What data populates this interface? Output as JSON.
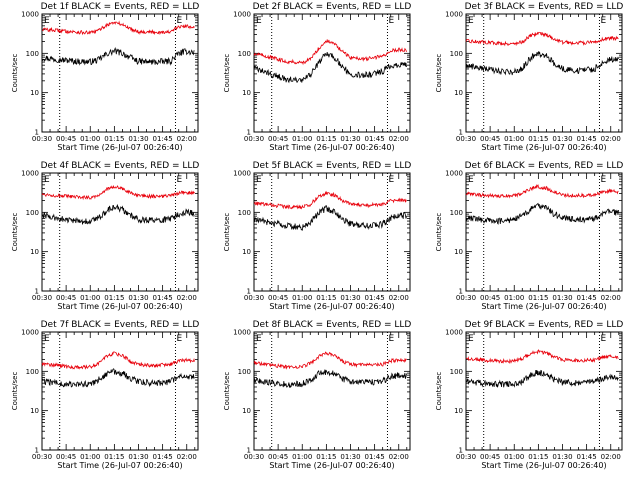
{
  "window": {
    "title": ""
  },
  "colors": {
    "events": "#000000",
    "lld": "#e8000b",
    "axes": "#000000",
    "background": "#ffffff"
  },
  "chart_data": [
    {
      "type": "line",
      "title": "Det 1f BLACK = Events, RED = LLD",
      "xlabel": "Start Time (26-Jul-07 00:26:40)",
      "ylabel": "Counts/sec",
      "yscale": "log",
      "xlim": [
        "00:30",
        "02:07"
      ],
      "ylim": [
        1,
        1000
      ],
      "x_ticks": [
        "00:30",
        "00:45",
        "01:00",
        "01:15",
        "01:30",
        "01:45",
        "02:00"
      ],
      "y_ticks": [
        "1",
        "10",
        "100",
        "1000"
      ],
      "vlines": [
        "00:41",
        "01:53"
      ],
      "markers": [
        "E",
        "E"
      ],
      "series": [
        {
          "name": "BLACK = Events",
          "color": "#000000",
          "x": [
            "00:30",
            "00:40",
            "00:50",
            "01:00",
            "01:05",
            "01:10",
            "01:15",
            "01:20",
            "01:25",
            "01:30",
            "01:40",
            "01:50",
            "01:55",
            "02:00",
            "02:05"
          ],
          "values": [
            78,
            70,
            63,
            61,
            68,
            95,
            115,
            100,
            78,
            62,
            60,
            63,
            100,
            112,
            105
          ]
        },
        {
          "name": "RED = LLD",
          "color": "#e8000b",
          "x": [
            "00:30",
            "00:40",
            "00:50",
            "01:00",
            "01:05",
            "01:10",
            "01:15",
            "01:20",
            "01:25",
            "01:30",
            "01:40",
            "01:50",
            "01:55",
            "02:00",
            "02:05"
          ],
          "values": [
            410,
            380,
            350,
            330,
            380,
            520,
            610,
            540,
            420,
            355,
            345,
            350,
            470,
            490,
            470
          ]
        }
      ]
    },
    {
      "type": "line",
      "title": "Det 2f BLACK = Events, RED = LLD",
      "xlabel": "Start Time (26-Jul-07 00:26:40)",
      "ylabel": "Counts/sec",
      "yscale": "log",
      "xlim": [
        "00:30",
        "02:07"
      ],
      "ylim": [
        1,
        1000
      ],
      "x_ticks": [
        "00:30",
        "00:45",
        "01:00",
        "01:15",
        "01:30",
        "01:45",
        "02:00"
      ],
      "y_ticks": [
        "1",
        "10",
        "100",
        "1000"
      ],
      "vlines": [
        "00:41",
        "01:53"
      ],
      "markers": [
        "E",
        "E"
      ],
      "series": [
        {
          "name": "BLACK = Events",
          "color": "#000000",
          "x": [
            "00:30",
            "00:40",
            "00:50",
            "01:00",
            "01:05",
            "01:10",
            "01:15",
            "01:20",
            "01:25",
            "01:30",
            "01:40",
            "01:50",
            "01:55",
            "02:00",
            "02:05"
          ],
          "values": [
            42,
            30,
            22,
            20,
            28,
            55,
            100,
            80,
            45,
            30,
            28,
            35,
            48,
            52,
            50
          ]
        },
        {
          "name": "RED = LLD",
          "color": "#e8000b",
          "x": [
            "00:30",
            "00:40",
            "00:50",
            "01:00",
            "01:05",
            "01:10",
            "01:15",
            "01:20",
            "01:25",
            "01:30",
            "01:40",
            "01:50",
            "01:55",
            "02:00",
            "02:05"
          ],
          "values": [
            100,
            80,
            62,
            58,
            70,
            130,
            210,
            175,
            110,
            78,
            72,
            85,
            115,
            125,
            120
          ]
        }
      ]
    },
    {
      "type": "line",
      "title": "Det 3f BLACK = Events, RED = LLD",
      "xlabel": "Start Time (26-Jul-07 00:26:40)",
      "ylabel": "Counts/sec",
      "yscale": "log",
      "xlim": [
        "00:30",
        "02:07"
      ],
      "ylim": [
        1,
        1000
      ],
      "x_ticks": [
        "00:30",
        "00:45",
        "01:00",
        "01:15",
        "01:30",
        "01:45",
        "02:00"
      ],
      "y_ticks": [
        "1",
        "10",
        "100",
        "1000"
      ],
      "vlines": [
        "00:41",
        "01:53"
      ],
      "markers": [
        "E",
        "E"
      ],
      "series": [
        {
          "name": "BLACK = Events",
          "color": "#000000",
          "x": [
            "00:30",
            "00:40",
            "00:50",
            "01:00",
            "01:05",
            "01:10",
            "01:15",
            "01:20",
            "01:25",
            "01:30",
            "01:40",
            "01:50",
            "01:55",
            "02:00",
            "02:05"
          ],
          "values": [
            50,
            42,
            35,
            33,
            42,
            75,
            100,
            85,
            55,
            40,
            36,
            40,
            60,
            72,
            68
          ]
        },
        {
          "name": "RED = LLD",
          "color": "#e8000b",
          "x": [
            "00:30",
            "00:40",
            "00:50",
            "01:00",
            "01:05",
            "01:10",
            "01:15",
            "01:20",
            "01:25",
            "01:30",
            "01:40",
            "01:50",
            "01:55",
            "02:00",
            "02:05"
          ],
          "values": [
            205,
            195,
            180,
            175,
            195,
            280,
            330,
            300,
            230,
            190,
            185,
            190,
            230,
            245,
            235
          ]
        }
      ]
    },
    {
      "type": "line",
      "title": "Det 4f BLACK = Events, RED = LLD",
      "xlabel": "Start Time (26-Jul-07 00:26:40)",
      "ylabel": "Counts/sec",
      "yscale": "log",
      "xlim": [
        "00:30",
        "02:07"
      ],
      "ylim": [
        1,
        1000
      ],
      "x_ticks": [
        "00:30",
        "00:45",
        "01:00",
        "01:15",
        "01:30",
        "01:45",
        "02:00"
      ],
      "y_ticks": [
        "1",
        "10",
        "100",
        "1000"
      ],
      "vlines": [
        "00:41",
        "01:53"
      ],
      "markers": [
        "E",
        "E"
      ],
      "series": [
        {
          "name": "BLACK = Events",
          "color": "#000000",
          "x": [
            "00:30",
            "00:40",
            "00:50",
            "01:00",
            "01:05",
            "01:10",
            "01:15",
            "01:20",
            "01:25",
            "01:30",
            "01:40",
            "01:50",
            "01:55",
            "02:00",
            "02:05"
          ],
          "values": [
            85,
            70,
            60,
            58,
            70,
            110,
            140,
            120,
            85,
            66,
            62,
            66,
            90,
            100,
            95
          ]
        },
        {
          "name": "RED = LLD",
          "color": "#e8000b",
          "x": [
            "00:30",
            "00:40",
            "00:50",
            "01:00",
            "01:05",
            "01:10",
            "01:15",
            "01:20",
            "01:25",
            "01:30",
            "01:40",
            "01:50",
            "01:55",
            "02:00",
            "02:05"
          ],
          "values": [
            290,
            265,
            245,
            240,
            270,
            380,
            450,
            400,
            310,
            260,
            255,
            260,
            310,
            320,
            300
          ]
        }
      ]
    },
    {
      "type": "line",
      "title": "Det 5f BLACK = Events, RED = LLD",
      "xlabel": "Start Time (26-Jul-07 00:26:40)",
      "ylabel": "Counts/sec",
      "yscale": "log",
      "xlim": [
        "00:30",
        "02:07"
      ],
      "ylim": [
        1,
        1000
      ],
      "x_ticks": [
        "00:30",
        "00:45",
        "01:00",
        "01:15",
        "01:30",
        "01:45",
        "02:00"
      ],
      "y_ticks": [
        "1",
        "10",
        "100",
        "1000"
      ],
      "vlines": [
        "00:41",
        "01:53"
      ],
      "markers": [
        "E",
        "E"
      ],
      "series": [
        {
          "name": "BLACK = Events",
          "color": "#000000",
          "x": [
            "00:30",
            "00:40",
            "00:50",
            "01:00",
            "01:05",
            "01:10",
            "01:15",
            "01:20",
            "01:25",
            "01:30",
            "01:40",
            "01:50",
            "01:55",
            "02:00",
            "02:05"
          ],
          "values": [
            65,
            55,
            45,
            42,
            55,
            95,
            125,
            105,
            68,
            50,
            46,
            50,
            72,
            85,
            80
          ]
        },
        {
          "name": "RED = LLD",
          "color": "#e8000b",
          "x": [
            "00:30",
            "00:40",
            "00:50",
            "01:00",
            "01:05",
            "01:10",
            "01:15",
            "01:20",
            "01:25",
            "01:30",
            "01:40",
            "01:50",
            "01:55",
            "02:00",
            "02:05"
          ],
          "values": [
            170,
            155,
            140,
            135,
            160,
            250,
            310,
            275,
            200,
            160,
            150,
            160,
            195,
            205,
            195
          ]
        }
      ]
    },
    {
      "type": "line",
      "title": "Det 6f BLACK = Events, RED = LLD",
      "xlabel": "Start Time (26-Jul-07 00:26:40)",
      "ylabel": "Counts/sec",
      "yscale": "log",
      "xlim": [
        "00:30",
        "02:07"
      ],
      "ylim": [
        1,
        1000
      ],
      "x_ticks": [
        "00:30",
        "00:45",
        "01:00",
        "01:15",
        "01:30",
        "01:45",
        "02:00"
      ],
      "y_ticks": [
        "1",
        "10",
        "100",
        "1000"
      ],
      "vlines": [
        "00:41",
        "01:53"
      ],
      "markers": [
        "E",
        "E"
      ],
      "series": [
        {
          "name": "BLACK = Events",
          "color": "#000000",
          "x": [
            "00:30",
            "00:40",
            "00:50",
            "01:00",
            "01:05",
            "01:10",
            "01:15",
            "01:20",
            "01:25",
            "01:30",
            "01:40",
            "01:50",
            "01:55",
            "02:00",
            "02:05"
          ],
          "values": [
            75,
            65,
            60,
            65,
            80,
            120,
            145,
            125,
            90,
            72,
            65,
            68,
            90,
            105,
            95
          ]
        },
        {
          "name": "RED = LLD",
          "color": "#e8000b",
          "x": [
            "00:30",
            "00:40",
            "00:50",
            "01:00",
            "01:05",
            "01:10",
            "01:15",
            "01:20",
            "01:25",
            "01:30",
            "01:40",
            "01:50",
            "01:55",
            "02:00",
            "02:05"
          ],
          "values": [
            300,
            275,
            255,
            265,
            300,
            400,
            450,
            410,
            330,
            275,
            265,
            270,
            330,
            350,
            320
          ]
        }
      ]
    },
    {
      "type": "line",
      "title": "Det 7f BLACK = Events, RED = LLD",
      "xlabel": "Start Time (26-Jul-07 00:26:40)",
      "ylabel": "Counts/sec",
      "yscale": "log",
      "xlim": [
        "00:30",
        "02:07"
      ],
      "ylim": [
        1,
        1000
      ],
      "x_ticks": [
        "00:30",
        "00:45",
        "01:00",
        "01:15",
        "01:30",
        "01:45",
        "02:00"
      ],
      "y_ticks": [
        "1",
        "10",
        "100",
        "1000"
      ],
      "vlines": [
        "00:41",
        "01:53"
      ],
      "markers": [
        "E",
        "E"
      ],
      "series": [
        {
          "name": "BLACK = Events",
          "color": "#000000",
          "x": [
            "00:30",
            "00:40",
            "00:50",
            "01:00",
            "01:05",
            "01:10",
            "01:15",
            "01:20",
            "01:25",
            "01:30",
            "01:40",
            "01:50",
            "01:55",
            "02:00",
            "02:05"
          ],
          "values": [
            55,
            50,
            45,
            48,
            60,
            85,
            100,
            90,
            65,
            55,
            50,
            55,
            70,
            75,
            72
          ]
        },
        {
          "name": "RED = LLD",
          "color": "#e8000b",
          "x": [
            "00:30",
            "00:40",
            "00:50",
            "01:00",
            "01:05",
            "01:10",
            "01:15",
            "01:20",
            "01:25",
            "01:30",
            "01:40",
            "01:50",
            "01:55",
            "02:00",
            "02:05"
          ],
          "values": [
            160,
            140,
            125,
            130,
            160,
            240,
            290,
            250,
            180,
            150,
            140,
            150,
            185,
            195,
            185
          ]
        }
      ]
    },
    {
      "type": "line",
      "title": "Det 8f BLACK = Events, RED = LLD",
      "xlabel": "Start Time (26-Jul-07 00:26:40)",
      "ylabel": "Counts/sec",
      "yscale": "log",
      "xlim": [
        "00:30",
        "02:07"
      ],
      "ylim": [
        1,
        1000
      ],
      "x_ticks": [
        "00:30",
        "00:45",
        "01:00",
        "01:15",
        "01:30",
        "01:45",
        "02:00"
      ],
      "y_ticks": [
        "1",
        "10",
        "100",
        "1000"
      ],
      "vlines": [
        "00:41",
        "01:53"
      ],
      "markers": [
        "E",
        "E"
      ],
      "series": [
        {
          "name": "BLACK = Events",
          "color": "#000000",
          "x": [
            "00:30",
            "00:40",
            "00:50",
            "01:00",
            "01:05",
            "01:10",
            "01:15",
            "01:20",
            "01:25",
            "01:30",
            "01:40",
            "01:50",
            "01:55",
            "02:00",
            "02:05"
          ],
          "values": [
            60,
            52,
            46,
            48,
            60,
            85,
            98,
            88,
            65,
            55,
            52,
            56,
            72,
            80,
            76
          ]
        },
        {
          "name": "RED = LLD",
          "color": "#e8000b",
          "x": [
            "00:30",
            "00:40",
            "00:50",
            "01:00",
            "01:05",
            "01:10",
            "01:15",
            "01:20",
            "01:25",
            "01:30",
            "01:40",
            "01:50",
            "01:55",
            "02:00",
            "02:05"
          ],
          "values": [
            165,
            145,
            130,
            132,
            160,
            235,
            285,
            250,
            180,
            150,
            145,
            150,
            185,
            195,
            185
          ]
        }
      ]
    },
    {
      "type": "line",
      "title": "Det 9f BLACK = Events, RED = LLD",
      "xlabel": "Start Time (26-Jul-07 00:26:40)",
      "ylabel": "Counts/sec",
      "yscale": "log",
      "xlim": [
        "00:30",
        "02:07"
      ],
      "ylim": [
        1,
        1000
      ],
      "x_ticks": [
        "00:30",
        "00:45",
        "01:00",
        "01:15",
        "01:30",
        "01:45",
        "02:00"
      ],
      "y_ticks": [
        "1",
        "10",
        "100",
        "1000"
      ],
      "vlines": [
        "00:41",
        "01:53"
      ],
      "markers": [
        "E",
        "E"
      ],
      "series": [
        {
          "name": "BLACK = Events",
          "color": "#000000",
          "x": [
            "00:30",
            "00:40",
            "00:50",
            "01:00",
            "01:05",
            "01:10",
            "01:15",
            "01:20",
            "01:25",
            "01:30",
            "01:40",
            "01:50",
            "01:55",
            "02:00",
            "02:05"
          ],
          "values": [
            55,
            50,
            47,
            48,
            56,
            80,
            95,
            85,
            62,
            52,
            50,
            53,
            66,
            72,
            68
          ]
        },
        {
          "name": "RED = LLD",
          "color": "#e8000b",
          "x": [
            "00:30",
            "00:40",
            "00:50",
            "01:00",
            "01:05",
            "01:10",
            "01:15",
            "01:20",
            "01:25",
            "01:30",
            "01:40",
            "01:50",
            "01:55",
            "02:00",
            "02:05"
          ],
          "values": [
            210,
            195,
            180,
            182,
            210,
            280,
            320,
            290,
            230,
            195,
            188,
            192,
            230,
            245,
            235
          ]
        }
      ]
    }
  ]
}
